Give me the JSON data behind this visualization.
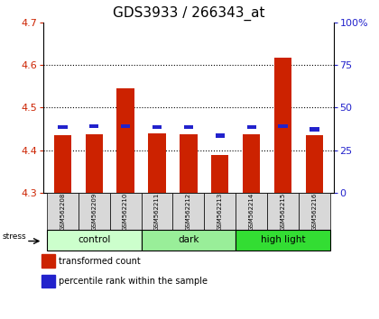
{
  "title": "GDS3933 / 266343_at",
  "samples": [
    "GSM562208",
    "GSM562209",
    "GSM562210",
    "GSM562211",
    "GSM562212",
    "GSM562213",
    "GSM562214",
    "GSM562215",
    "GSM562216"
  ],
  "red_values": [
    4.435,
    4.438,
    4.545,
    4.44,
    4.438,
    4.39,
    4.438,
    4.617,
    4.435
  ],
  "blue_values": [
    4.45,
    4.452,
    4.452,
    4.45,
    4.45,
    4.43,
    4.45,
    4.452,
    4.445
  ],
  "ymin": 4.3,
  "ymax": 4.7,
  "yticks_left": [
    4.3,
    4.4,
    4.5,
    4.6,
    4.7
  ],
  "yticks_right": [
    0,
    25,
    50,
    75,
    100
  ],
  "groups": [
    {
      "label": "control",
      "start": 0,
      "end": 3,
      "color": "#ccffcc"
    },
    {
      "label": "dark",
      "start": 3,
      "end": 6,
      "color": "#99ee99"
    },
    {
      "label": "high light",
      "start": 6,
      "end": 9,
      "color": "#33dd33"
    }
  ],
  "stress_label": "stress",
  "legend_red": "transformed count",
  "legend_blue": "percentile rank within the sample",
  "bar_width": 0.55,
  "base": 4.3,
  "red_color": "#cc2200",
  "blue_color": "#2222cc",
  "left_tick_color": "#cc2200",
  "right_tick_color": "#2222cc",
  "title_fontsize": 11,
  "tick_fontsize": 8,
  "label_fontsize": 7,
  "grid_dotted": [
    4.4,
    4.5,
    4.6
  ]
}
